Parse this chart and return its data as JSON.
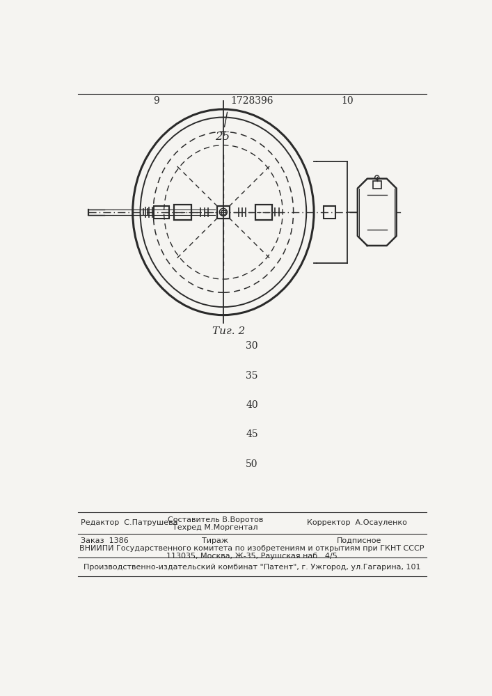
{
  "bg_color": "#f5f4f1",
  "line_color": "#2a2a2a",
  "page_num_left": "9",
  "page_num_right": "10",
  "patent_number": "1728396",
  "fig_label": "Τиг. 2",
  "label_25": "25",
  "line_numbers": [
    "30",
    "35",
    "40",
    "45",
    "50"
  ],
  "footer_editor": "Редактор  С.Патрушева",
  "footer_sostavitel": "Составитель В.Воротов",
  "footer_tehred": "Техред М.Моргентал",
  "footer_korrektor": "Корректор  А.Осауленко",
  "footer_zakaz": "Заказ  1386",
  "footer_tirazh": "Тираж",
  "footer_podpisnoe": "Подписное",
  "footer_vniipи": "ВНИИПИ Государственного комитета по изобретениям и открытиям при ГКНТ СССР",
  "footer_addr": "113035, Москва, Ж-35, Раушская наб.. 4/5",
  "footer_patent": "Производственно-издательский комбинат \"Патент\", г. Ужгород, ул.Гагарина, 101"
}
